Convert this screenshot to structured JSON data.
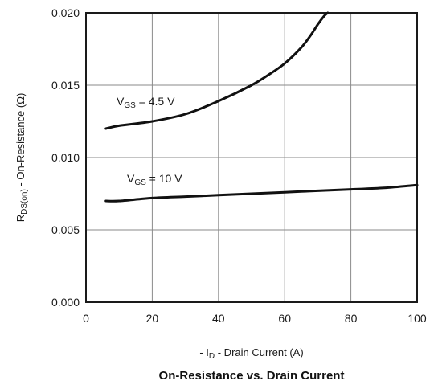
{
  "chart_data": {
    "type": "line",
    "title": "On-Resistance vs. Drain Current",
    "xlabel": {
      "pre": "- I",
      "sub": "D",
      "post": " - Drain Current (A)"
    },
    "ylabel": {
      "pre": "R",
      "sub": "DS(on)",
      "post": " - On-Resistance (Ω)"
    },
    "xlim": [
      0,
      100
    ],
    "ylim": [
      0,
      0.02
    ],
    "xticks": [
      0,
      20,
      40,
      60,
      80,
      100
    ],
    "xtick_labels": [
      "0",
      "20",
      "40",
      "60",
      "80",
      "100"
    ],
    "yticks": [
      0,
      0.005,
      0.01,
      0.015,
      0.02
    ],
    "ytick_labels": [
      "0.000",
      "0.005",
      "0.010",
      "0.015",
      "0.020"
    ],
    "grid": true,
    "series": [
      {
        "annotation": {
          "pre": "V",
          "sub": "GS",
          "post": " = 4.5 V"
        },
        "x": [
          6,
          10,
          20,
          30,
          40,
          50,
          55,
          60,
          65,
          68,
          70,
          72,
          73
        ],
        "y": [
          0.012,
          0.0122,
          0.0125,
          0.013,
          0.0139,
          0.015,
          0.0157,
          0.0165,
          0.0176,
          0.0185,
          0.0192,
          0.0198,
          0.02
        ]
      },
      {
        "annotation": {
          "pre": "V",
          "sub": "GS",
          "post": " = 10 V"
        },
        "x": [
          6,
          10,
          20,
          30,
          40,
          50,
          60,
          70,
          80,
          90,
          100
        ],
        "y": [
          0.007,
          0.007,
          0.0072,
          0.0073,
          0.0074,
          0.0075,
          0.0076,
          0.0077,
          0.0078,
          0.0079,
          0.0081
        ]
      }
    ]
  }
}
